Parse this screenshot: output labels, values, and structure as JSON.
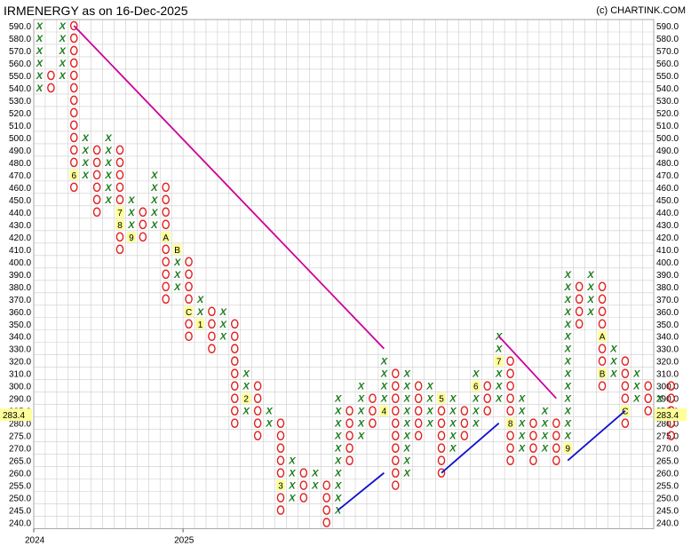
{
  "header": {
    "title": "IRMENERGY as on 16-Dec-2025",
    "credit": "(c) CHARTINK.COM"
  },
  "chart_data": {
    "type": "point-and-figure",
    "ylim": [
      240,
      590
    ],
    "y_ticks": [
      "590.0",
      "580.0",
      "570.0",
      "560.0",
      "550.0",
      "540.0",
      "530.0",
      "520.0",
      "510.0",
      "500.0",
      "490.0",
      "480.0",
      "470.0",
      "460.0",
      "450.0",
      "440.0",
      "430.0",
      "420.0",
      "410.0",
      "400.0",
      "390.0",
      "380.0",
      "370.0",
      "360.0",
      "350.0",
      "340.0",
      "330.0",
      "320.0",
      "310.0",
      "300.0",
      "290.0",
      "285.0",
      "280.0",
      "275.0",
      "270.0",
      "265.0",
      "260.0",
      "255.0",
      "250.0",
      "245.0",
      "240.0"
    ],
    "x_labels": [
      {
        "col": 0,
        "text": "2024"
      },
      {
        "col": 13,
        "text": "2025"
      }
    ],
    "last_price": "283.4",
    "colors": {
      "x": "#1a7a1a",
      "o": "#e02020",
      "highlight": "#ffff99",
      "resistance": "#cc0099",
      "support": "#1010cc",
      "grid": "#cccccc"
    },
    "columns": [
      {
        "type": "X",
        "from": 540,
        "to": 590
      },
      {
        "type": "O",
        "from": 550,
        "to": 540
      },
      {
        "type": "X",
        "from": 550,
        "to": 600
      },
      {
        "type": "O",
        "from": 590,
        "to": 460,
        "markers": [
          {
            "at": 470,
            "text": "6"
          }
        ]
      },
      {
        "type": "X",
        "from": 470,
        "to": 500
      },
      {
        "type": "O",
        "from": 490,
        "to": 440
      },
      {
        "type": "X",
        "from": 450,
        "to": 500
      },
      {
        "type": "O",
        "from": 490,
        "to": 410,
        "markers": [
          {
            "at": 440,
            "text": "7"
          },
          {
            "at": 430,
            "text": "8"
          }
        ]
      },
      {
        "type": "X",
        "from": 420,
        "to": 450,
        "markers": [
          {
            "at": 420,
            "text": "9"
          }
        ]
      },
      {
        "type": "O",
        "from": 440,
        "to": 420
      },
      {
        "type": "X",
        "from": 430,
        "to": 470
      },
      {
        "type": "O",
        "from": 460,
        "to": 370,
        "markers": [
          {
            "at": 420,
            "text": "A"
          }
        ]
      },
      {
        "type": "X",
        "from": 380,
        "to": 410,
        "markers": [
          {
            "at": 410,
            "text": "B"
          }
        ]
      },
      {
        "type": "O",
        "from": 400,
        "to": 340,
        "markers": [
          {
            "at": 360,
            "text": "C"
          }
        ]
      },
      {
        "type": "X",
        "from": 350,
        "to": 370,
        "markers": [
          {
            "at": 350,
            "text": "1"
          }
        ]
      },
      {
        "type": "O",
        "from": 360,
        "to": 330
      },
      {
        "type": "X",
        "from": 340,
        "to": 360
      },
      {
        "type": "O",
        "from": 350,
        "to": 280
      },
      {
        "type": "X",
        "from": 285,
        "to": 310,
        "markers": [
          {
            "at": 290,
            "text": "2"
          }
        ]
      },
      {
        "type": "O",
        "from": 300,
        "to": 275
      },
      {
        "type": "X",
        "from": 280,
        "to": 285
      },
      {
        "type": "O",
        "from": 280,
        "to": 245,
        "markers": [
          {
            "at": 255,
            "text": "3"
          }
        ]
      },
      {
        "type": "X",
        "from": 250,
        "to": 265
      },
      {
        "type": "O",
        "from": 260,
        "to": 250
      },
      {
        "type": "X",
        "from": 255,
        "to": 260
      },
      {
        "type": "O",
        "from": 255,
        "to": 240
      },
      {
        "type": "X",
        "from": 245,
        "to": 290
      },
      {
        "type": "O",
        "from": 285,
        "to": 265
      },
      {
        "type": "X",
        "from": 275,
        "to": 300
      },
      {
        "type": "O",
        "from": 290,
        "to": 280
      },
      {
        "type": "X",
        "from": 285,
        "to": 320,
        "markers": [
          {
            "at": 285,
            "text": "4"
          }
        ]
      },
      {
        "type": "O",
        "from": 310,
        "to": 255
      },
      {
        "type": "X",
        "from": 260,
        "to": 310
      },
      {
        "type": "O",
        "from": 300,
        "to": 275
      },
      {
        "type": "X",
        "from": 280,
        "to": 300
      },
      {
        "type": "O",
        "from": 290,
        "to": 260,
        "markers": [
          {
            "at": 290,
            "text": "5"
          }
        ]
      },
      {
        "type": "X",
        "from": 270,
        "to": 290
      },
      {
        "type": "O",
        "from": 285,
        "to": 275
      },
      {
        "type": "X",
        "from": 280,
        "to": 310,
        "markers": [
          {
            "at": 300,
            "text": "6"
          }
        ]
      },
      {
        "type": "O",
        "from": 300,
        "to": 285
      },
      {
        "type": "X",
        "from": 290,
        "to": 340,
        "markers": [
          {
            "at": 320,
            "text": "7"
          }
        ]
      },
      {
        "type": "O",
        "from": 320,
        "to": 265,
        "markers": [
          {
            "at": 280,
            "text": "8"
          }
        ]
      },
      {
        "type": "X",
        "from": 270,
        "to": 290
      },
      {
        "type": "O",
        "from": 280,
        "to": 265
      },
      {
        "type": "X",
        "from": 270,
        "to": 285
      },
      {
        "type": "O",
        "from": 280,
        "to": 265
      },
      {
        "type": "X",
        "from": 270,
        "to": 390,
        "markers": [
          {
            "at": 270,
            "text": "9"
          }
        ]
      },
      {
        "type": "O",
        "from": 380,
        "to": 350
      },
      {
        "type": "X",
        "from": 360,
        "to": 390
      },
      {
        "type": "O",
        "from": 380,
        "to": 300,
        "markers": [
          {
            "at": 340,
            "text": "A"
          },
          {
            "at": 310,
            "text": "B"
          }
        ]
      },
      {
        "type": "X",
        "from": 310,
        "to": 330
      },
      {
        "type": "O",
        "from": 320,
        "to": 280,
        "markers": [
          {
            "at": 285,
            "text": "C"
          }
        ]
      },
      {
        "type": "X",
        "from": 290,
        "to": 310
      },
      {
        "type": "O",
        "from": 300,
        "to": 285
      },
      {
        "type": "X",
        "from": 285,
        "to": 290
      },
      {
        "type": "O",
        "from": 300,
        "to": 275
      }
    ],
    "trend_lines": [
      {
        "kind": "resistance",
        "from": {
          "col": 3,
          "value": 600
        },
        "to": {
          "col": 30,
          "value": 330
        }
      },
      {
        "kind": "support",
        "from": {
          "col": 26,
          "value": 245
        },
        "to": {
          "col": 30,
          "value": 260
        }
      },
      {
        "kind": "support",
        "from": {
          "col": 35,
          "value": 260
        },
        "to": {
          "col": 40,
          "value": 280
        }
      },
      {
        "kind": "resistance",
        "from": {
          "col": 40,
          "value": 340
        },
        "to": {
          "col": 45,
          "value": 290
        }
      },
      {
        "kind": "support",
        "from": {
          "col": 46,
          "value": 265
        },
        "to": {
          "col": 51,
          "value": 285
        }
      }
    ]
  }
}
